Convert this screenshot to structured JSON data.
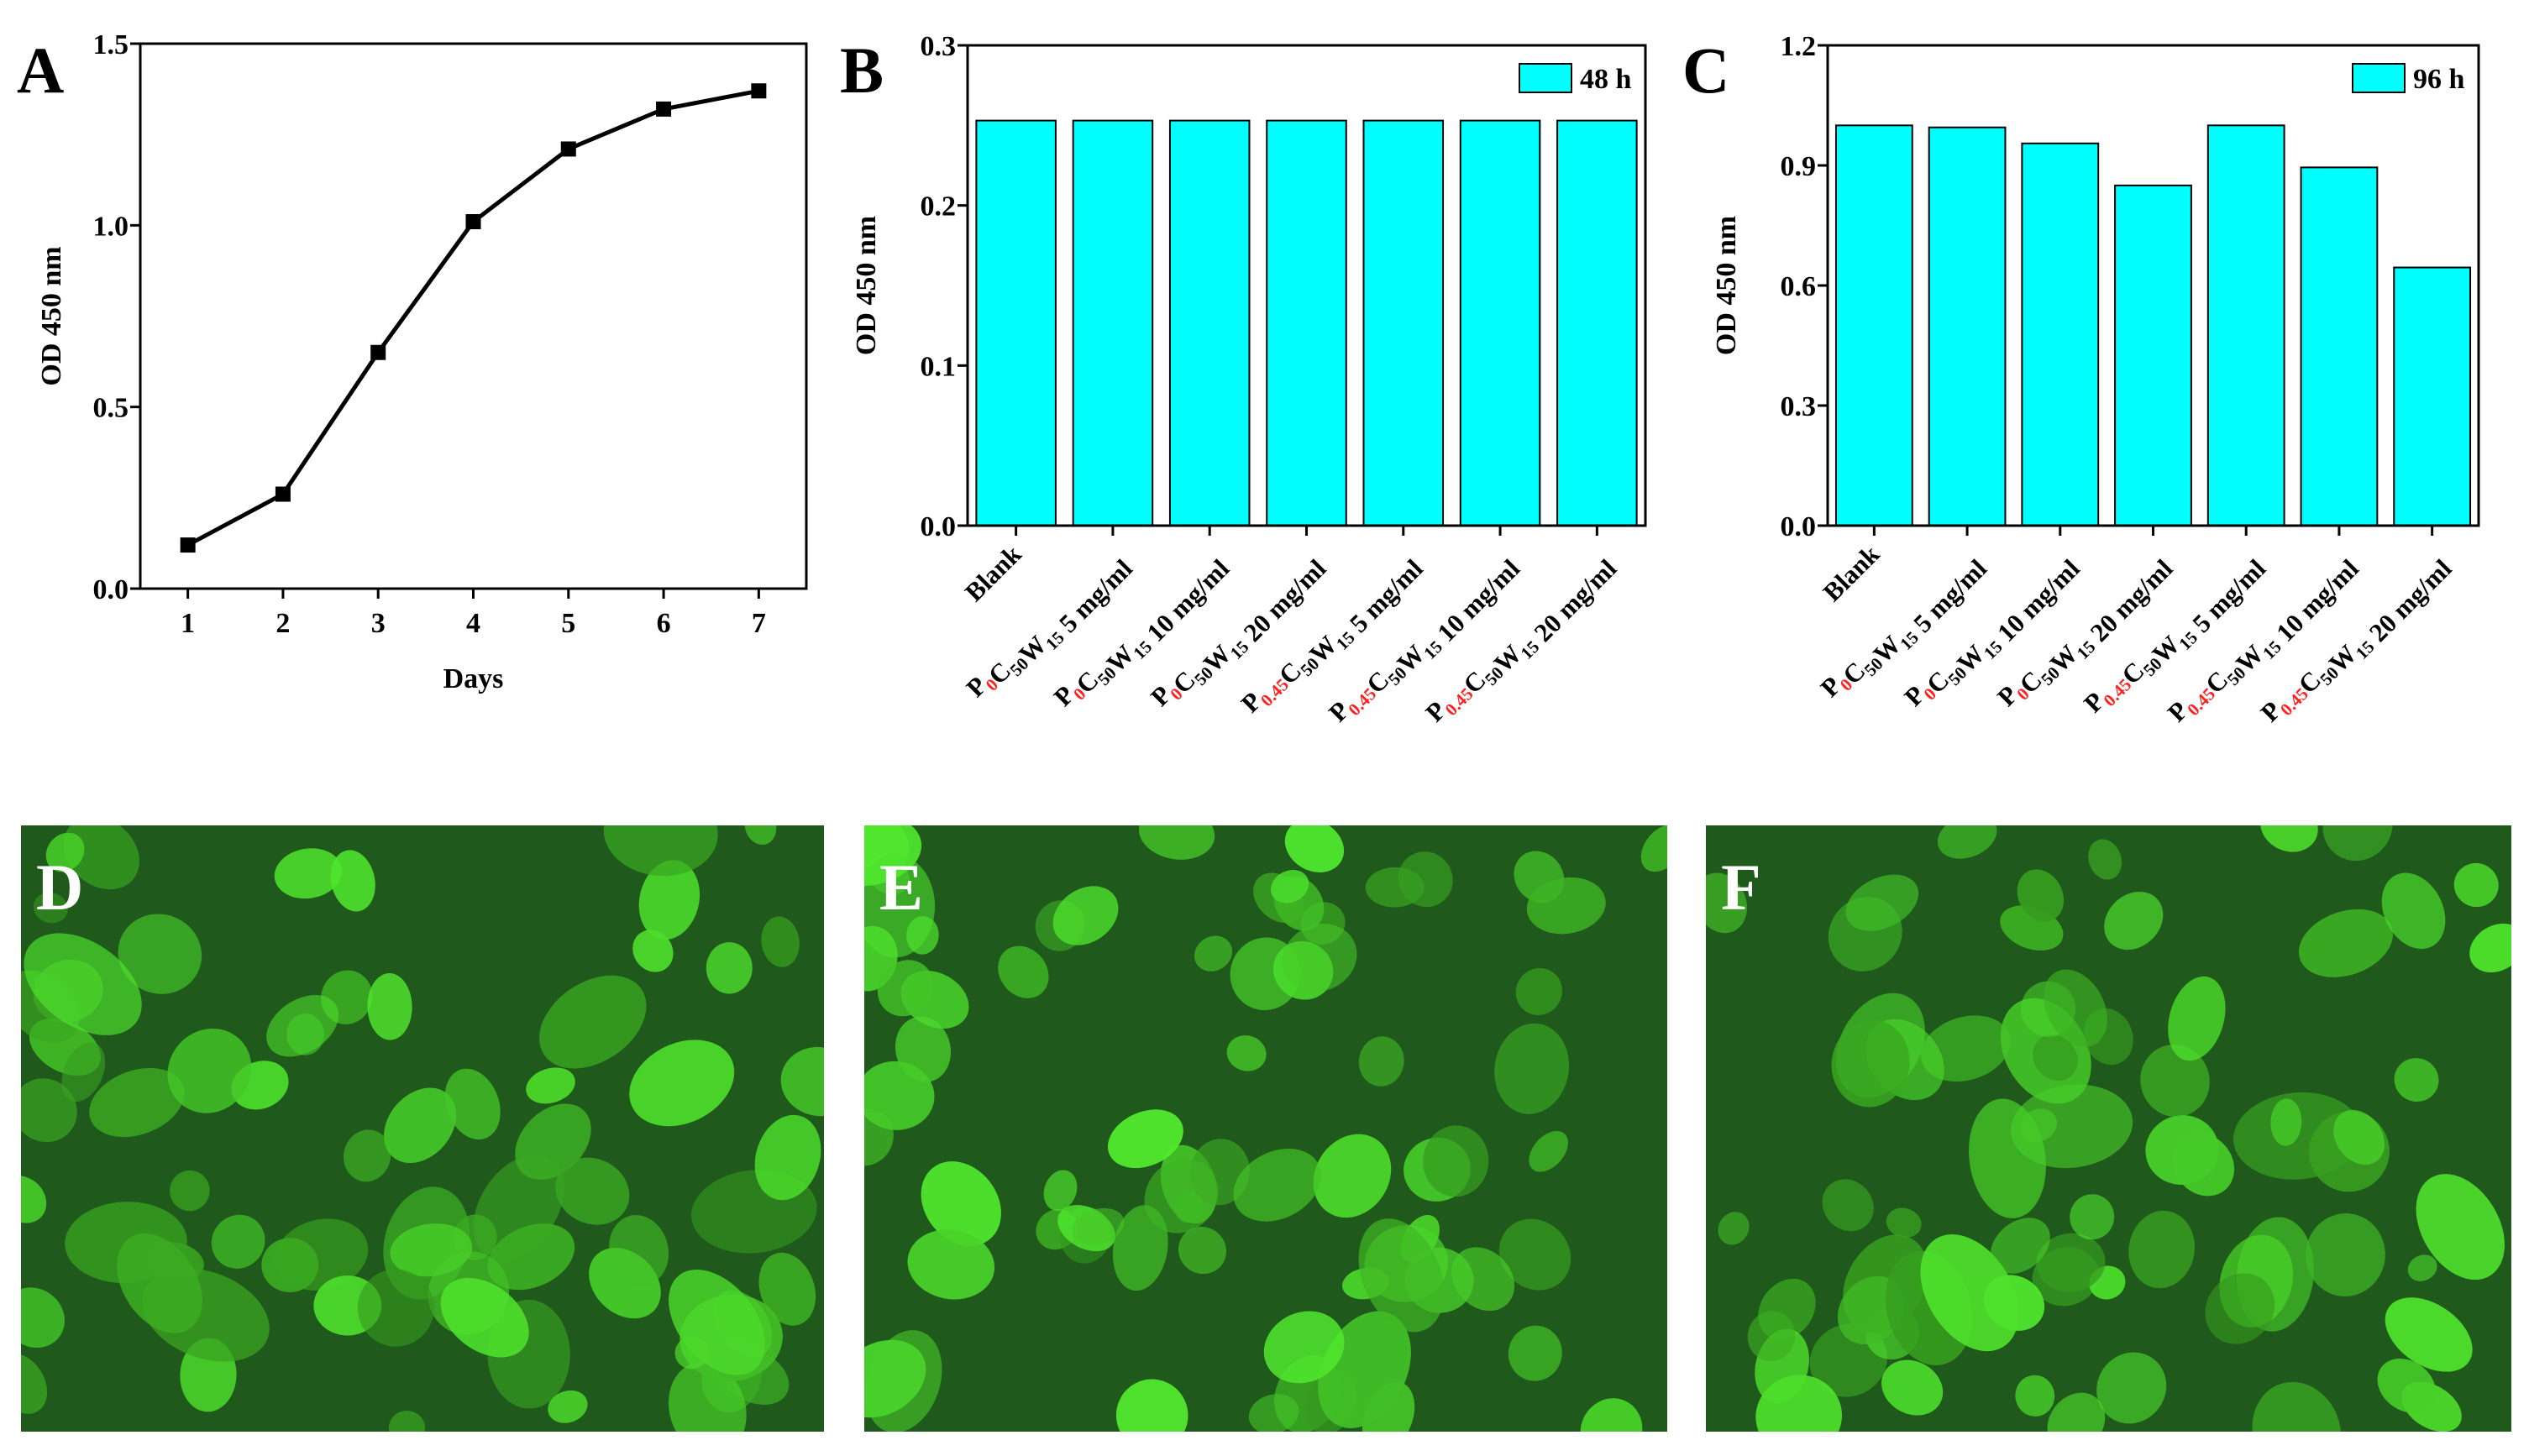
{
  "chart_data": [
    {
      "type": "line",
      "panel": "A",
      "x": [
        1,
        2,
        3,
        4,
        5,
        6,
        7
      ],
      "values": [
        0.12,
        0.26,
        0.65,
        1.01,
        1.21,
        1.32,
        1.37
      ],
      "color": "#000000",
      "xlim": [
        0.5,
        7.5
      ],
      "xticks": [
        1,
        2,
        3,
        4,
        5,
        6,
        7
      ],
      "ylim": [
        0,
        1.5
      ],
      "yticks": [
        {
          "value": 0,
          "label": "0.0"
        },
        0.5,
        {
          "value": 1,
          "label": "1.0"
        },
        1.5
      ],
      "xlabel": "Days",
      "ylabel": "OD 450 nm"
    },
    {
      "type": "bar",
      "panel": "B",
      "categories": [
        "Blank",
        "P0C50W15 5 mg/ml",
        "P0C50W15 10 mg/ml",
        "P0C50W15 20 mg/ml",
        "P0.45C50W15 5 mg/ml",
        "P0.45C50W15 10 mg/ml",
        "P0.45C50W15 20 mg/ml"
      ],
      "series": [
        {
          "name": "48 h",
          "color": "#00ffff",
          "values": [
            0.253,
            0.253,
            0.253,
            0.253,
            0.253,
            0.253,
            0.253
          ]
        }
      ],
      "ylim": [
        0,
        0.3
      ],
      "yticks": [
        {
          "value": 0,
          "label": "0.0"
        },
        0.1,
        0.2,
        0.3
      ],
      "ylabel": "OD 450 nm",
      "legend": "top-right"
    },
    {
      "type": "bar",
      "panel": "C",
      "categories": [
        "Blank",
        "P0C50W15 5 mg/ml",
        "P0C50W15 10 mg/ml",
        "P0C50W15 20 mg/ml",
        "P0.45C50W15 5 mg/ml",
        "P0.45C50W15 10 mg/ml",
        "P0.45C50W15 20 mg/ml"
      ],
      "series": [
        {
          "name": "96 h",
          "color": "#00ffff",
          "values": [
            1.0,
            0.995,
            0.955,
            0.85,
            1.0,
            0.895,
            0.645
          ]
        }
      ],
      "ylim": [
        0,
        1.2
      ],
      "yticks": [
        {
          "value": 0,
          "label": "0.0"
        },
        0.3,
        0.6,
        0.9,
        {
          "value": 1.2,
          "label": "1.2"
        }
      ],
      "ylabel": "OD 450 nm",
      "legend": "top-right"
    }
  ],
  "images": [
    {
      "label": "D"
    },
    {
      "label": "E"
    },
    {
      "label": "F"
    }
  ]
}
